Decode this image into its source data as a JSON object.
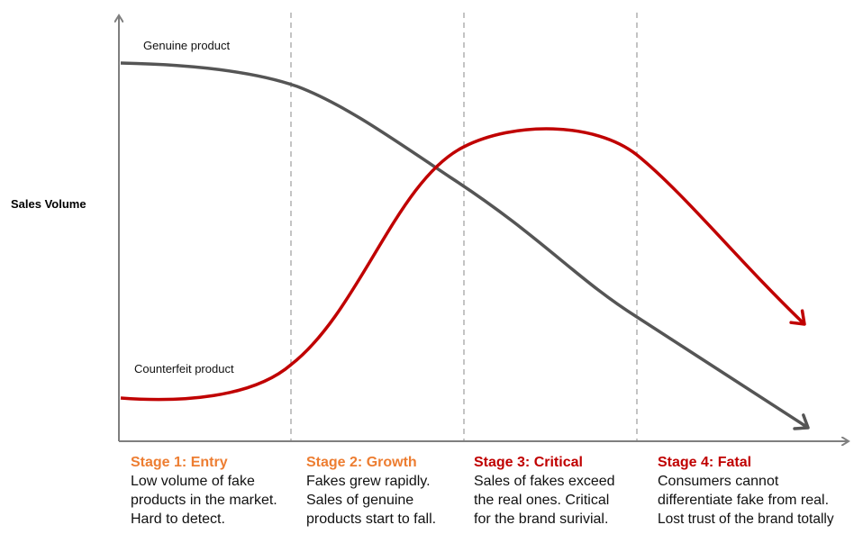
{
  "y_axis_label": "Sales Volume",
  "curves": {
    "genuine": {
      "label": "Genuine product",
      "color": "#555555"
    },
    "counterfeit": {
      "label": "Counterfeit product",
      "color": "#c00000"
    }
  },
  "colors": {
    "axis": "#7f7f7f",
    "divider": "#b0b0b0"
  },
  "stages": [
    {
      "title": "Stage 1: Entry",
      "title_color": "#ed7d31",
      "lines": [
        "Low volume of fake",
        "products in the market.",
        "Hard to detect."
      ]
    },
    {
      "title": "Stage 2: Growth",
      "title_color": "#ed7d31",
      "lines": [
        "Fakes grew rapidly.",
        "Sales of genuine",
        "products start to fall."
      ]
    },
    {
      "title": "Stage 3: Critical",
      "title_color": "#c00000",
      "lines": [
        "Sales of fakes exceed",
        "the real ones. Critical",
        "for the brand surivial."
      ]
    },
    {
      "title": "Stage 4: Fatal",
      "title_color": "#c00000",
      "lines": [
        "Consumers cannot",
        "differentiate fake from real.",
        "Lost trust of the brand totally"
      ]
    }
  ]
}
